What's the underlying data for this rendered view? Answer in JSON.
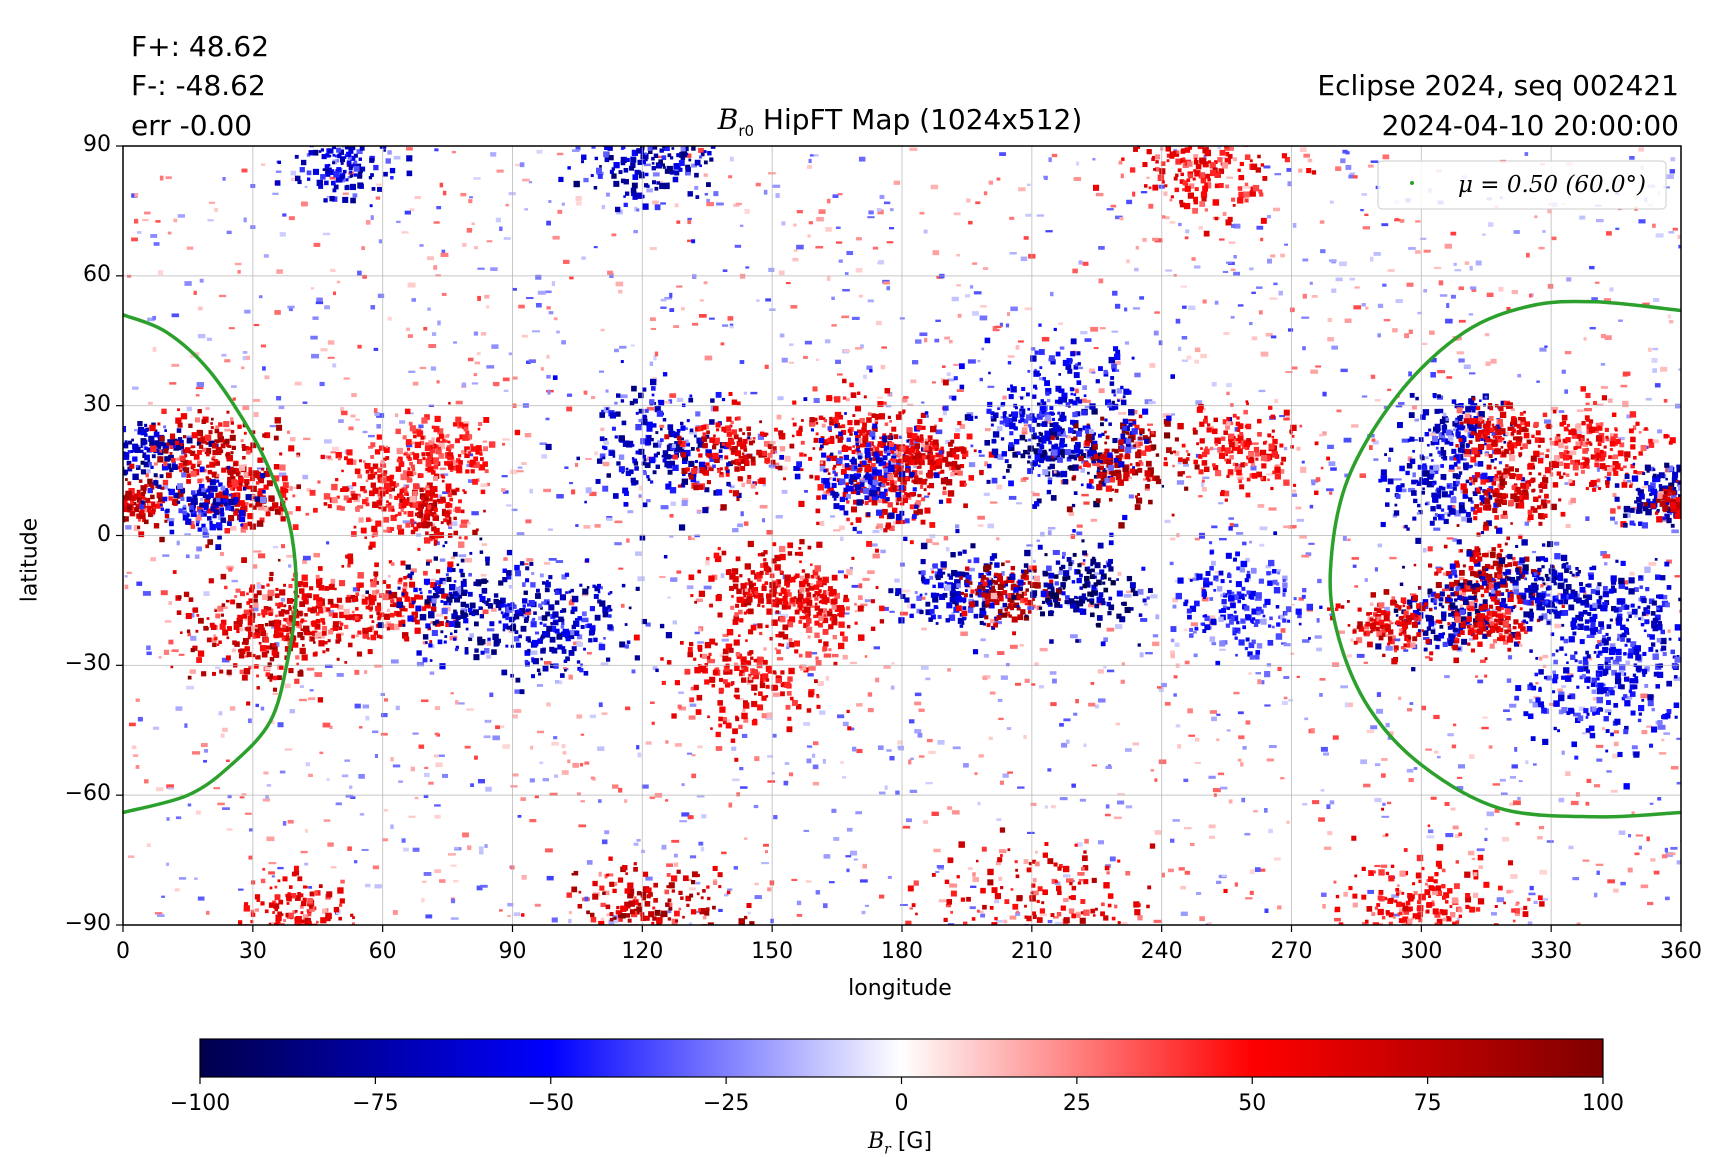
{
  "stats": {
    "fplus": "F+: 48.62",
    "fminus": "F-: -48.62",
    "err": "err -0.00"
  },
  "info": {
    "eclipse": "Eclipse 2024, seq 002421",
    "datetime": "2024-04-10 20:00:00"
  },
  "chart_data": {
    "type": "heatmap",
    "title_symbol": "B",
    "title_sub": "r0",
    "title_rest": " HipFT Map (1024x512)",
    "xlabel": "longitude",
    "ylabel": "latitude",
    "xlim": [
      0,
      360
    ],
    "ylim": [
      -90,
      90
    ],
    "xticks": [
      "0",
      "30",
      "60",
      "90",
      "120",
      "150",
      "180",
      "210",
      "240",
      "270",
      "300",
      "330",
      "360"
    ],
    "yticks": [
      "90",
      "60",
      "30",
      "0",
      "−30",
      "−60",
      "−90"
    ],
    "grid": true,
    "legend": {
      "placement": "top-right",
      "label": "μ = 0.50 (60.0°)",
      "color": "#2ca02c"
    },
    "contour": {
      "name": "μ = 0.50 (60.0°)",
      "color": "#2ca02c",
      "left_arc": [
        [
          0,
          51
        ],
        [
          10,
          47
        ],
        [
          20,
          38
        ],
        [
          30,
          23
        ],
        [
          36,
          10
        ],
        [
          39,
          0
        ],
        [
          40,
          -14
        ],
        [
          38,
          -29
        ],
        [
          34,
          -43
        ],
        [
          25,
          -53
        ],
        [
          15,
          -60
        ],
        [
          0,
          -64
        ]
      ],
      "right_arc": [
        [
          360,
          52
        ],
        [
          340,
          54
        ],
        [
          325,
          53
        ],
        [
          310,
          47
        ],
        [
          295,
          33
        ],
        [
          283,
          13
        ],
        [
          279,
          -8
        ],
        [
          281,
          -24
        ],
        [
          288,
          -40
        ],
        [
          300,
          -53
        ],
        [
          318,
          -63
        ],
        [
          340,
          -65
        ],
        [
          360,
          -64
        ]
      ]
    },
    "colorbar": {
      "label_symbol": "B",
      "label_sub": "r",
      "label_unit": " [G]",
      "range": [
        -100,
        100
      ],
      "ticks": [
        "−100",
        "−75",
        "−50",
        "−25",
        "0",
        "25",
        "50",
        "75",
        "100"
      ],
      "colormap": "seismic",
      "colors": [
        "#00004c",
        "#0000ff",
        "#ffffff",
        "#ff0000",
        "#7f0000"
      ]
    },
    "regions": [
      {
        "lon": 5,
        "lat": 20,
        "sign": -1,
        "strength": 80,
        "spread": 5
      },
      {
        "lon": 2,
        "lat": 8,
        "sign": 1,
        "strength": 85,
        "spread": 4
      },
      {
        "lon": 20,
        "lat": 20,
        "sign": 1,
        "strength": 80,
        "spread": 7
      },
      {
        "lon": 28,
        "lat": 10,
        "sign": 1,
        "strength": 75,
        "spread": 6
      },
      {
        "lon": 18,
        "lat": 8,
        "sign": -1,
        "strength": 70,
        "spread": 5
      },
      {
        "lon": 70,
        "lat": 6,
        "sign": 1,
        "strength": 70,
        "spread": 5
      },
      {
        "lon": 60,
        "lat": 12,
        "sign": 1,
        "strength": 55,
        "spread": 8
      },
      {
        "lon": 75,
        "lat": 20,
        "sign": 1,
        "strength": 50,
        "spread": 6
      },
      {
        "lon": 30,
        "lat": -22,
        "sign": 1,
        "strength": 80,
        "spread": 9
      },
      {
        "lon": 40,
        "lat": -18,
        "sign": 1,
        "strength": 65,
        "spread": 7
      },
      {
        "lon": 60,
        "lat": -15,
        "sign": 1,
        "strength": 65,
        "spread": 7
      },
      {
        "lon": 80,
        "lat": -15,
        "sign": -1,
        "strength": 85,
        "spread": 9
      },
      {
        "lon": 100,
        "lat": -20,
        "sign": -1,
        "strength": 75,
        "spread": 9
      },
      {
        "lon": 125,
        "lat": 20,
        "sign": -1,
        "strength": 75,
        "spread": 10
      },
      {
        "lon": 140,
        "lat": 20,
        "sign": 1,
        "strength": 75,
        "spread": 6
      },
      {
        "lon": 148,
        "lat": -12,
        "sign": 1,
        "strength": 70,
        "spread": 7
      },
      {
        "lon": 160,
        "lat": -15,
        "sign": 1,
        "strength": 65,
        "spread": 6
      },
      {
        "lon": 145,
        "lat": -32,
        "sign": 1,
        "strength": 60,
        "spread": 9
      },
      {
        "lon": 170,
        "lat": 22,
        "sign": 1,
        "strength": 65,
        "spread": 9
      },
      {
        "lon": 178,
        "lat": 12,
        "sign": 1,
        "strength": 70,
        "spread": 7
      },
      {
        "lon": 172,
        "lat": 15,
        "sign": -1,
        "strength": 65,
        "spread": 7
      },
      {
        "lon": 185,
        "lat": 18,
        "sign": 1,
        "strength": 70,
        "spread": 5
      },
      {
        "lon": 193,
        "lat": -12,
        "sign": -1,
        "strength": 75,
        "spread": 7
      },
      {
        "lon": 205,
        "lat": -13,
        "sign": 1,
        "strength": 95,
        "spread": 5
      },
      {
        "lon": 220,
        "lat": -12,
        "sign": -1,
        "strength": 95,
        "spread": 7
      },
      {
        "lon": 215,
        "lat": 20,
        "sign": -1,
        "strength": 90,
        "spread": 8
      },
      {
        "lon": 232,
        "lat": 18,
        "sign": 1,
        "strength": 90,
        "spread": 7
      },
      {
        "lon": 215,
        "lat": 30,
        "sign": -1,
        "strength": 60,
        "spread": 12
      },
      {
        "lon": 260,
        "lat": 20,
        "sign": 1,
        "strength": 55,
        "spread": 7
      },
      {
        "lon": 258,
        "lat": -15,
        "sign": -1,
        "strength": 50,
        "spread": 8
      },
      {
        "lon": 308,
        "lat": 25,
        "sign": -1,
        "strength": 75,
        "spread": 6
      },
      {
        "lon": 318,
        "lat": 24,
        "sign": 1,
        "strength": 70,
        "spread": 5
      },
      {
        "lon": 305,
        "lat": 12,
        "sign": -1,
        "strength": 70,
        "spread": 7
      },
      {
        "lon": 320,
        "lat": 10,
        "sign": 1,
        "strength": 75,
        "spread": 5
      },
      {
        "lon": 340,
        "lat": 20,
        "sign": 1,
        "strength": 55,
        "spread": 8
      },
      {
        "lon": 356,
        "lat": 10,
        "sign": -1,
        "strength": 80,
        "spread": 5
      },
      {
        "lon": 359,
        "lat": 8,
        "sign": 1,
        "strength": 85,
        "spread": 3
      },
      {
        "lon": 315,
        "lat": -8,
        "sign": 1,
        "strength": 80,
        "spread": 6
      },
      {
        "lon": 326,
        "lat": -12,
        "sign": -1,
        "strength": 80,
        "spread": 7
      },
      {
        "lon": 305,
        "lat": -18,
        "sign": -1,
        "strength": 80,
        "spread": 6
      },
      {
        "lon": 292,
        "lat": -20,
        "sign": 1,
        "strength": 70,
        "spread": 5
      },
      {
        "lon": 315,
        "lat": -20,
        "sign": 1,
        "strength": 65,
        "spread": 5
      },
      {
        "lon": 345,
        "lat": -20,
        "sign": -1,
        "strength": 70,
        "spread": 10
      },
      {
        "lon": 340,
        "lat": -35,
        "sign": -1,
        "strength": 60,
        "spread": 9
      },
      {
        "lon": 120,
        "lat": 87,
        "sign": -1,
        "strength": 80,
        "spread": 8
      },
      {
        "lon": 50,
        "lat": 86,
        "sign": -1,
        "strength": 70,
        "spread": 6
      },
      {
        "lon": 250,
        "lat": 85,
        "sign": 1,
        "strength": 60,
        "spread": 8
      },
      {
        "lon": 120,
        "lat": -88,
        "sign": 1,
        "strength": 85,
        "spread": 10
      },
      {
        "lon": 210,
        "lat": -89,
        "sign": 1,
        "strength": 70,
        "spread": 12
      },
      {
        "lon": 40,
        "lat": -86,
        "sign": 1,
        "strength": 60,
        "spread": 6
      },
      {
        "lon": 300,
        "lat": -86,
        "sign": 1,
        "strength": 55,
        "spread": 10
      }
    ]
  }
}
